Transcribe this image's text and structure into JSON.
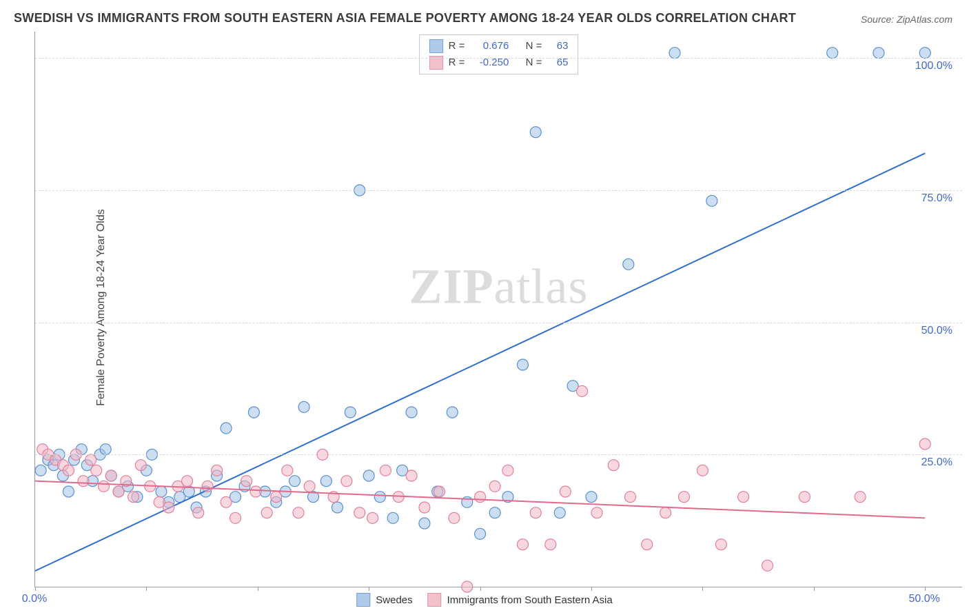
{
  "title": "SWEDISH VS IMMIGRANTS FROM SOUTH EASTERN ASIA FEMALE POVERTY AMONG 18-24 YEAR OLDS CORRELATION CHART",
  "source_label": "Source: ZipAtlas.com",
  "ylabel": "Female Poverty Among 18-24 Year Olds",
  "watermark_bold": "ZIP",
  "watermark_rest": "atlas",
  "chart": {
    "type": "scatter",
    "xlim": [
      0,
      50
    ],
    "ylim": [
      0,
      105
    ],
    "xtick_positions": [
      0,
      6,
      12,
      18,
      24,
      30,
      36,
      42,
      48
    ],
    "xtick_labels": {
      "0": "0.0%",
      "48": "50.0%"
    },
    "ytick_positions": [
      25,
      50,
      75,
      100
    ],
    "ytick_labels": {
      "25": "25.0%",
      "50": "50.0%",
      "75": "75.0%",
      "100": "100.0%"
    },
    "grid_color": "#d8d8d8",
    "background_color": "#ffffff",
    "axis_color": "#999999",
    "tick_label_color": "#4169cc",
    "label_fontsize": 16,
    "title_fontsize": 18,
    "title_color": "#3a3a3a",
    "marker_radius": 8,
    "marker_stroke_width": 1.2,
    "line_width": 2,
    "series": [
      {
        "name": "Swedes",
        "fill": "#a2c2e6",
        "fill_opacity": 0.55,
        "stroke": "#5a8fd0",
        "line_color": "#2f6fd0",
        "r_value": "0.676",
        "n_value": "63",
        "regression": {
          "x1": 0,
          "y1": 3,
          "x2": 48,
          "y2": 82
        },
        "points": [
          [
            0.3,
            22
          ],
          [
            0.7,
            24
          ],
          [
            1.0,
            23
          ],
          [
            1.3,
            25
          ],
          [
            1.5,
            21
          ],
          [
            1.8,
            18
          ],
          [
            2.1,
            24
          ],
          [
            2.5,
            26
          ],
          [
            2.8,
            23
          ],
          [
            3.1,
            20
          ],
          [
            3.5,
            25
          ],
          [
            3.8,
            26
          ],
          [
            4.1,
            21
          ],
          [
            4.5,
            18
          ],
          [
            5.0,
            19
          ],
          [
            5.5,
            17
          ],
          [
            6.0,
            22
          ],
          [
            6.3,
            25
          ],
          [
            6.8,
            18
          ],
          [
            7.2,
            16
          ],
          [
            7.8,
            17
          ],
          [
            8.3,
            18
          ],
          [
            8.7,
            15
          ],
          [
            9.2,
            18
          ],
          [
            9.8,
            21
          ],
          [
            10.3,
            30
          ],
          [
            10.8,
            17
          ],
          [
            11.3,
            19
          ],
          [
            11.8,
            33
          ],
          [
            12.4,
            18
          ],
          [
            13.0,
            16
          ],
          [
            13.5,
            18
          ],
          [
            14.0,
            20
          ],
          [
            14.5,
            34
          ],
          [
            15.0,
            17
          ],
          [
            15.7,
            20
          ],
          [
            16.3,
            15
          ],
          [
            17.0,
            33
          ],
          [
            17.5,
            75
          ],
          [
            18.0,
            21
          ],
          [
            18.6,
            17
          ],
          [
            19.3,
            13
          ],
          [
            19.8,
            22
          ],
          [
            20.3,
            33
          ],
          [
            21.0,
            12
          ],
          [
            21.7,
            18
          ],
          [
            22.5,
            33
          ],
          [
            23.3,
            16
          ],
          [
            24.0,
            10
          ],
          [
            24.8,
            14
          ],
          [
            25.5,
            17
          ],
          [
            26.3,
            42
          ],
          [
            27.0,
            86
          ],
          [
            27.5,
            101
          ],
          [
            28.3,
            14
          ],
          [
            29.0,
            38
          ],
          [
            30.0,
            17
          ],
          [
            32.0,
            61
          ],
          [
            34.5,
            101
          ],
          [
            36.5,
            73
          ],
          [
            43.0,
            101
          ],
          [
            45.5,
            101
          ],
          [
            48.0,
            101
          ]
        ]
      },
      {
        "name": "Immigrants from South Eastern Asia",
        "fill": "#f2b7c4",
        "fill_opacity": 0.55,
        "stroke": "#e27f9a",
        "line_color": "#e26a8a",
        "r_value": "-0.250",
        "n_value": "65",
        "regression": {
          "x1": 0,
          "y1": 20,
          "x2": 48,
          "y2": 13
        },
        "points": [
          [
            0.4,
            26
          ],
          [
            0.7,
            25
          ],
          [
            1.1,
            24
          ],
          [
            1.5,
            23
          ],
          [
            1.8,
            22
          ],
          [
            2.2,
            25
          ],
          [
            2.6,
            20
          ],
          [
            3.0,
            24
          ],
          [
            3.3,
            22
          ],
          [
            3.7,
            19
          ],
          [
            4.1,
            21
          ],
          [
            4.5,
            18
          ],
          [
            4.9,
            20
          ],
          [
            5.3,
            17
          ],
          [
            5.7,
            23
          ],
          [
            6.2,
            19
          ],
          [
            6.7,
            16
          ],
          [
            7.2,
            15
          ],
          [
            7.7,
            19
          ],
          [
            8.2,
            20
          ],
          [
            8.8,
            14
          ],
          [
            9.3,
            19
          ],
          [
            9.8,
            22
          ],
          [
            10.3,
            16
          ],
          [
            10.8,
            13
          ],
          [
            11.4,
            20
          ],
          [
            11.9,
            18
          ],
          [
            12.5,
            14
          ],
          [
            13.0,
            17
          ],
          [
            13.6,
            22
          ],
          [
            14.2,
            14
          ],
          [
            14.8,
            19
          ],
          [
            15.5,
            25
          ],
          [
            16.1,
            17
          ],
          [
            16.8,
            20
          ],
          [
            17.5,
            14
          ],
          [
            18.2,
            13
          ],
          [
            18.9,
            22
          ],
          [
            19.6,
            17
          ],
          [
            20.3,
            21
          ],
          [
            21.0,
            15
          ],
          [
            21.8,
            18
          ],
          [
            22.6,
            13
          ],
          [
            23.3,
            0
          ],
          [
            24.0,
            17
          ],
          [
            24.8,
            19
          ],
          [
            25.5,
            22
          ],
          [
            26.3,
            8
          ],
          [
            27.0,
            14
          ],
          [
            27.8,
            8
          ],
          [
            28.6,
            18
          ],
          [
            29.5,
            37
          ],
          [
            30.3,
            14
          ],
          [
            31.2,
            23
          ],
          [
            32.1,
            17
          ],
          [
            33.0,
            8
          ],
          [
            34.0,
            14
          ],
          [
            35.0,
            17
          ],
          [
            36.0,
            22
          ],
          [
            37.0,
            8
          ],
          [
            38.2,
            17
          ],
          [
            39.5,
            4
          ],
          [
            41.5,
            17
          ],
          [
            44.5,
            17
          ],
          [
            48.0,
            27
          ]
        ]
      }
    ]
  },
  "legend_top_label_r": "R =",
  "legend_top_label_n": "N =",
  "legend_bottom": [
    "Swedes",
    "Immigrants from South Eastern Asia"
  ]
}
